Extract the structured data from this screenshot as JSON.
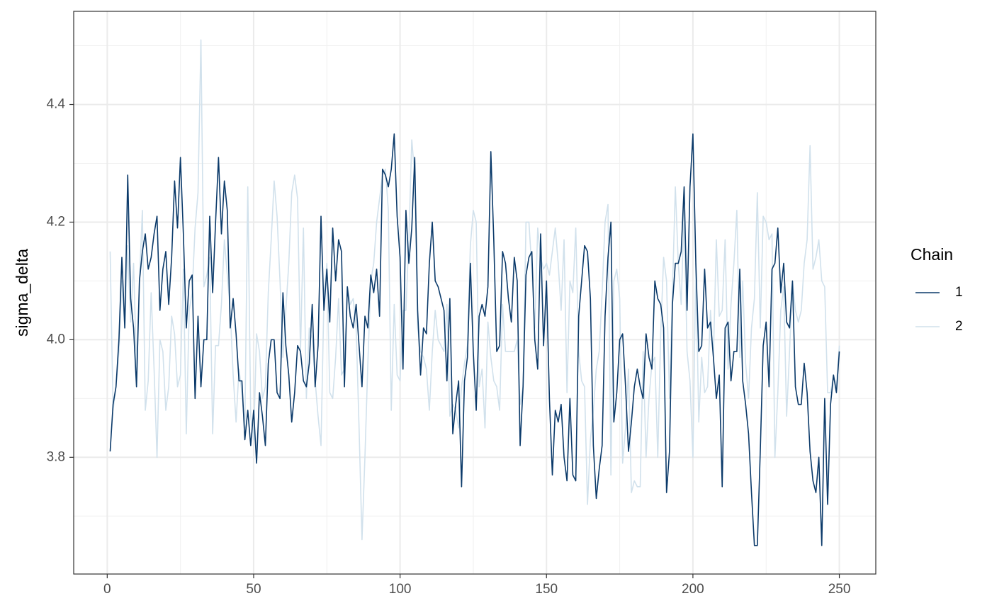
{
  "chart_data": {
    "type": "line",
    "ylabel": "sigma_delta",
    "legend_title": "Chain",
    "legend_position": "right",
    "grid": true,
    "xlim": [
      -11.45,
      262.45
    ],
    "xticks": [
      0,
      50,
      100,
      150,
      200,
      250
    ],
    "ylim": [
      3.6015,
      4.5585
    ],
    "yticks": [
      3.8,
      {
        "value": 4,
        "label": "4.0"
      },
      4.2,
      4.4
    ],
    "x": [
      1,
      2,
      3,
      4,
      5,
      6,
      7,
      8,
      9,
      10,
      11,
      12,
      13,
      14,
      15,
      16,
      17,
      18,
      19,
      20,
      21,
      22,
      23,
      24,
      25,
      26,
      27,
      28,
      29,
      30,
      31,
      32,
      33,
      34,
      35,
      36,
      37,
      38,
      39,
      40,
      41,
      42,
      43,
      44,
      45,
      46,
      47,
      48,
      49,
      50,
      51,
      52,
      53,
      54,
      55,
      56,
      57,
      58,
      59,
      60,
      61,
      62,
      63,
      64,
      65,
      66,
      67,
      68,
      69,
      70,
      71,
      72,
      73,
      74,
      75,
      76,
      77,
      78,
      79,
      80,
      81,
      82,
      83,
      84,
      85,
      86,
      87,
      88,
      89,
      90,
      91,
      92,
      93,
      94,
      95,
      96,
      97,
      98,
      99,
      100,
      101,
      102,
      103,
      104,
      105,
      106,
      107,
      108,
      109,
      110,
      111,
      112,
      113,
      114,
      115,
      116,
      117,
      118,
      119,
      120,
      121,
      122,
      123,
      124,
      125,
      126,
      127,
      128,
      129,
      130,
      131,
      132,
      133,
      134,
      135,
      136,
      137,
      138,
      139,
      140,
      141,
      142,
      143,
      144,
      145,
      146,
      147,
      148,
      149,
      150,
      151,
      152,
      153,
      154,
      155,
      156,
      157,
      158,
      159,
      160,
      161,
      162,
      163,
      164,
      165,
      166,
      167,
      168,
      169,
      170,
      171,
      172,
      173,
      174,
      175,
      176,
      177,
      178,
      179,
      180,
      181,
      182,
      183,
      184,
      185,
      186,
      187,
      188,
      189,
      190,
      191,
      192,
      193,
      194,
      195,
      196,
      197,
      198,
      199,
      200,
      201,
      202,
      203,
      204,
      205,
      206,
      207,
      208,
      209,
      210,
      211,
      212,
      213,
      214,
      215,
      216,
      217,
      218,
      219,
      220,
      221,
      222,
      223,
      224,
      225,
      226,
      227,
      228,
      229,
      230,
      231,
      232,
      233,
      234,
      235,
      236,
      237,
      238,
      239,
      240,
      241,
      242,
      243,
      244,
      245,
      246,
      247,
      248,
      249,
      250
    ],
    "series": [
      {
        "name": "1",
        "color": "#0b3a6a",
        "values": [
          3.81,
          3.89,
          3.92,
          4.0,
          4.14,
          4.02,
          4.28,
          4.07,
          4.02,
          3.92,
          4.1,
          4.15,
          4.18,
          4.12,
          4.14,
          4.18,
          4.21,
          4.05,
          4.12,
          4.15,
          4.06,
          4.14,
          4.27,
          4.19,
          4.31,
          4.18,
          4.02,
          4.1,
          4.11,
          3.9,
          4.04,
          3.92,
          4.0,
          4.0,
          4.21,
          4.08,
          4.2,
          4.31,
          4.18,
          4.27,
          4.22,
          4.02,
          4.07,
          4.01,
          3.93,
          3.93,
          3.83,
          3.88,
          3.82,
          3.88,
          3.79,
          3.91,
          3.87,
          3.82,
          3.96,
          4.0,
          4.0,
          3.91,
          3.9,
          4.08,
          3.99,
          3.94,
          3.86,
          3.91,
          3.99,
          3.98,
          3.93,
          3.92,
          3.96,
          4.06,
          3.92,
          3.99,
          4.21,
          4.05,
          4.12,
          4.03,
          4.19,
          4.1,
          4.17,
          4.15,
          3.92,
          4.09,
          4.04,
          4.02,
          4.06,
          3.99,
          3.92,
          4.04,
          4.02,
          4.11,
          4.08,
          4.12,
          4.04,
          4.29,
          4.28,
          4.26,
          4.29,
          4.35,
          4.21,
          4.14,
          3.95,
          4.22,
          4.13,
          4.19,
          4.31,
          4.05,
          3.94,
          4.02,
          4.01,
          4.13,
          4.2,
          4.1,
          4.09,
          4.07,
          4.05,
          3.93,
          4.07,
          3.84,
          3.89,
          3.93,
          3.75,
          3.93,
          3.97,
          4.13,
          3.98,
          3.88,
          4.04,
          4.06,
          4.04,
          4.09,
          4.32,
          4.17,
          3.98,
          3.99,
          4.15,
          4.13,
          4.07,
          4.03,
          4.14,
          4.1,
          3.82,
          3.92,
          4.11,
          4.14,
          4.15,
          4.0,
          3.95,
          4.18,
          3.99,
          4.1,
          3.9,
          3.77,
          3.88,
          3.86,
          3.89,
          3.8,
          3.76,
          3.9,
          3.77,
          3.76,
          4.04,
          4.1,
          4.16,
          4.15,
          4.07,
          3.82,
          3.73,
          3.78,
          3.82,
          4.04,
          4.14,
          4.2,
          3.86,
          3.91,
          4.0,
          4.01,
          3.92,
          3.81,
          3.86,
          3.92,
          3.95,
          3.92,
          3.9,
          4.01,
          3.97,
          3.95,
          4.1,
          4.07,
          4.06,
          4.02,
          3.74,
          3.81,
          4.06,
          4.13,
          4.13,
          4.15,
          4.26,
          4.05,
          4.26,
          4.35,
          4.13,
          3.98,
          3.99,
          4.12,
          4.02,
          4.03,
          3.97,
          3.9,
          3.94,
          3.75,
          4.02,
          4.03,
          3.93,
          3.98,
          3.98,
          4.12,
          3.93,
          3.89,
          3.84,
          3.74,
          3.65,
          3.65,
          3.81,
          3.99,
          4.03,
          3.92,
          4.12,
          4.13,
          4.19,
          4.08,
          4.13,
          4.03,
          4.02,
          4.1,
          3.92,
          3.89,
          3.89,
          3.96,
          3.91,
          3.81,
          3.76,
          3.74,
          3.8,
          3.65,
          3.9,
          3.72,
          3.89,
          3.94,
          3.91,
          3.98
        ]
      },
      {
        "name": "2",
        "color": "#d1e1ec",
        "values": [
          4.15,
          3.88,
          3.92,
          3.98,
          4.1,
          4.02,
          4.16,
          4.03,
          4.13,
          3.95,
          4.1,
          4.22,
          3.88,
          3.93,
          4.08,
          3.95,
          3.8,
          4.0,
          3.98,
          3.88,
          3.92,
          4.04,
          4.01,
          3.92,
          3.94,
          4.12,
          3.84,
          4.05,
          4.08,
          4.19,
          4.25,
          4.51,
          4.09,
          4.11,
          4.14,
          3.84,
          3.99,
          3.99,
          4.06,
          4.17,
          4.11,
          4.05,
          3.94,
          3.86,
          3.95,
          3.91,
          3.85,
          4.26,
          3.87,
          3.83,
          4.01,
          3.98,
          3.9,
          3.92,
          4.08,
          4.17,
          4.27,
          4.21,
          4.1,
          3.97,
          4.05,
          4.13,
          4.25,
          4.28,
          4.24,
          3.98,
          4.19,
          3.9,
          4.02,
          4.0,
          3.93,
          3.87,
          3.82,
          4.07,
          4.13,
          3.91,
          3.9,
          3.97,
          4.07,
          3.94,
          3.95,
          4.09,
          4.06,
          4.07,
          4.02,
          3.85,
          3.66,
          3.8,
          3.96,
          4.1,
          4.13,
          4.2,
          4.24,
          4.28,
          4.29,
          4.22,
          3.88,
          4.06,
          3.94,
          3.93,
          4.05,
          4.05,
          4.17,
          4.34,
          4.28,
          4.02,
          3.98,
          3.97,
          3.95,
          3.88,
          3.98,
          4.05,
          4.0,
          3.99,
          3.98,
          4.06,
          3.87,
          3.89,
          3.88,
          3.85,
          3.92,
          3.96,
          3.99,
          4.16,
          4.22,
          4.2,
          3.92,
          3.95,
          3.85,
          4.03,
          3.97,
          3.93,
          3.92,
          3.88,
          4.06,
          3.98,
          3.98,
          3.98,
          3.98,
          4.0,
          3.89,
          3.92,
          4.2,
          4.2,
          4.12,
          4.02,
          4.19,
          4.14,
          4.12,
          4.13,
          4.11,
          4.15,
          4.19,
          4.13,
          4.05,
          4.17,
          3.91,
          4.1,
          4.08,
          4.19,
          3.98,
          3.93,
          3.92,
          3.72,
          3.83,
          3.88,
          3.95,
          3.98,
          4.08,
          4.2,
          4.23,
          3.77,
          4.1,
          4.12,
          4.07,
          3.79,
          3.85,
          3.95,
          3.74,
          3.76,
          3.75,
          3.75,
          3.98,
          3.8,
          3.9,
          3.96,
          3.97,
          3.8,
          4.01,
          4.14,
          4.1,
          3.9,
          4.08,
          4.26,
          4.13,
          4.06,
          4.22,
          3.98,
          3.93,
          3.8,
          4.13,
          3.86,
          3.97,
          3.91,
          3.92,
          4.05,
          3.97,
          4.17,
          4.04,
          4.05,
          4.17,
          3.95,
          4.06,
          4.13,
          4.22,
          3.97,
          4.1,
          3.96,
          3.9,
          4.02,
          4.07,
          4.25,
          4.02,
          4.21,
          4.2,
          4.17,
          4.18,
          3.8,
          3.91,
          4.05,
          4.09,
          3.87,
          3.98,
          4.1,
          4.05,
          4.03,
          4.05,
          4.13,
          4.17,
          4.33,
          4.12,
          4.14,
          4.17,
          4.1,
          4.09,
          3.91,
          3.91,
          3.94,
          3.92,
          3.99
        ]
      }
    ]
  }
}
